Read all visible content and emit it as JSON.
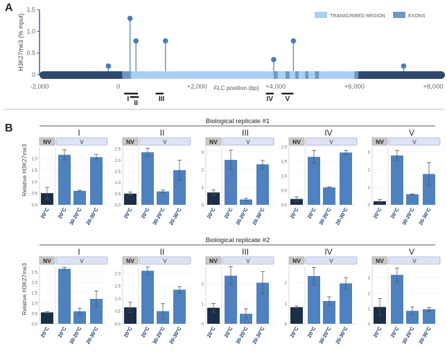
{
  "colors": {
    "dark_blue": "#2f4a6e",
    "light_blue": "#a9cfee",
    "exon_blue": "#6e98c4",
    "lollipop": "#4a7bb5",
    "bar_v": "#4e81bd",
    "bar_nv": "#1c2e45",
    "header_fill": "#dde3f3",
    "header_border": "#8a96c6",
    "nv_fill": "#c9c9c9",
    "axis": "#3b5f9b"
  },
  "panel_a": {
    "label": "A",
    "legend": [
      "TRANSCRIBED REGION",
      "EXONS"
    ],
    "regions": [
      "I",
      "II",
      "III",
      "IV",
      "V"
    ],
    "region_bars": [
      {
        "name": "I",
        "start": 150,
        "end": 500
      },
      {
        "name": "II",
        "start": 300,
        "end": 520
      },
      {
        "name": "III",
        "start": 950,
        "end": 1150
      },
      {
        "name": "IV",
        "start": 3750,
        "end": 3950
      },
      {
        "name": "V",
        "start": 4150,
        "end": 4450
      }
    ],
    "gene_line": {
      "start": -2000,
      "end": 8300
    },
    "transcribed": {
      "start": 300,
      "end": 6100
    },
    "exons": [
      {
        "start": 100,
        "end": 320
      },
      {
        "start": 3950,
        "end": 4050
      },
      {
        "start": 4250,
        "end": 4350
      },
      {
        "start": 4500,
        "end": 4580
      },
      {
        "start": 4750,
        "end": 4830
      },
      {
        "start": 5000,
        "end": 5100
      },
      {
        "start": 6000,
        "end": 6100
      }
    ]
  },
  "chart_data": [
    {
      "type": "scatter",
      "subtype": "lollipop",
      "title": "",
      "xlabel": "FLC position (bp)",
      "xlabel_italic_part": "FLC",
      "ylabel": "H3K27me3 (% input)",
      "xlim": [
        -2000,
        8000
      ],
      "ylim": [
        0,
        1.5
      ],
      "x_ticks": [
        "-2,000",
        "0",
        "+2,000",
        "+4,000",
        "+6,000",
        "+8,000"
      ],
      "x_tick_values": [
        -2000,
        0,
        2000,
        4000,
        6000,
        8000
      ],
      "y_ticks": [
        "0",
        "0.5",
        "1.0",
        "1.5"
      ],
      "y_tick_values": [
        0,
        0.5,
        1.0,
        1.5
      ],
      "x": [
        -250,
        300,
        450,
        1200,
        3950,
        4450,
        7250
      ],
      "y": [
        0.2,
        1.3,
        0.78,
        0.78,
        0.35,
        0.78,
        0.2
      ]
    }
  ],
  "panel_b": {
    "label": "B",
    "ylabel": "Relative H3K27me3",
    "nv_label": "NV",
    "v_label": "V",
    "categories": [
      "20°C",
      "20°C",
      "30-20°C",
      "20-30°C"
    ],
    "replicates": [
      {
        "title": "Biological replicate #1",
        "groups": [
          {
            "name": "I",
            "ylim": [
              0,
              2.5
            ],
            "y_ticks": [
              "0.0",
              "0.5",
              "1.0",
              "1.5",
              "2.0"
            ],
            "y_tick_values": [
              0,
              0.5,
              1.0,
              1.5,
              2.0
            ],
            "values": [
              0.5,
              2.15,
              0.6,
              2.05
            ],
            "errors": [
              0.25,
              0.22,
              0.03,
              0.12
            ]
          },
          {
            "name": "II",
            "ylim": [
              0,
              2.6
            ],
            "y_ticks": [
              "0.0",
              "0.5",
              "1.0",
              "1.5",
              "2.0",
              "2.5"
            ],
            "y_tick_values": [
              0,
              0.5,
              1.0,
              1.5,
              2.0,
              2.5
            ],
            "values": [
              0.5,
              2.35,
              0.6,
              1.55
            ],
            "errors": [
              0.07,
              0.18,
              0.06,
              0.45
            ]
          },
          {
            "name": "III",
            "ylim": [
              0,
              3.3
            ],
            "y_ticks": [
              "0",
              "1",
              "2",
              "3"
            ],
            "y_tick_values": [
              0,
              1,
              2,
              3
            ],
            "values": [
              0.7,
              2.55,
              0.3,
              2.3
            ],
            "errors": [
              0.15,
              0.55,
              0.07,
              0.22
            ]
          },
          {
            "name": "IV",
            "ylim": [
              0,
              2.0
            ],
            "y_ticks": [
              "0.0",
              "0.5",
              "1.0",
              "1.5",
              "2.0"
            ],
            "y_tick_values": [
              0,
              0.5,
              1.0,
              1.5,
              2.0
            ],
            "values": [
              0.2,
              1.65,
              0.6,
              1.8
            ],
            "errors": [
              0.07,
              0.22,
              0.02,
              0.07
            ]
          },
          {
            "name": "V",
            "ylim": [
              0,
              3.3
            ],
            "y_ticks": [
              "0",
              "1",
              "2",
              "3"
            ],
            "y_tick_values": [
              0,
              1,
              2,
              3
            ],
            "values": [
              0.2,
              2.8,
              0.6,
              1.75
            ],
            "errors": [
              0.1,
              0.28,
              0.02,
              0.65
            ]
          }
        ]
      },
      {
        "title": "Biological replicate #2",
        "groups": [
          {
            "name": "I",
            "ylim": [
              0,
              2.8
            ],
            "y_ticks": [
              "0.0",
              "0.5",
              "1.0",
              "1.5",
              "2.0",
              "2.5"
            ],
            "y_tick_values": [
              0,
              0.5,
              1.0,
              1.5,
              2.0,
              2.5
            ],
            "values": [
              0.55,
              2.65,
              0.6,
              1.2
            ],
            "errors": [
              0.04,
              0.07,
              0.15,
              0.38
            ]
          },
          {
            "name": "II",
            "ylim": [
              0,
              2.3
            ],
            "y_ticks": [
              "0.0",
              "0.5",
              "1.0",
              "1.5",
              "2.0"
            ],
            "y_tick_values": [
              0,
              0.5,
              1.0,
              1.5,
              2.0
            ],
            "values": [
              0.65,
              2.1,
              0.5,
              1.35
            ],
            "errors": [
              0.2,
              0.15,
              0.3,
              0.12
            ]
          },
          {
            "name": "III",
            "ylim": [
              0,
              2.9
            ],
            "y_ticks": [
              "0",
              "1",
              "2"
            ],
            "y_tick_values": [
              0,
              1,
              2
            ],
            "values": [
              0.8,
              2.4,
              0.5,
              2.05
            ],
            "errors": [
              0.22,
              0.45,
              0.25,
              0.55
            ]
          },
          {
            "name": "IV",
            "ylim": [
              0,
              2.8
            ],
            "y_ticks": [
              "0",
              "1",
              "2"
            ],
            "y_tick_values": [
              0,
              1,
              2
            ],
            "values": [
              0.8,
              2.3,
              1.1,
              1.95
            ],
            "errors": [
              0.06,
              0.42,
              0.2,
              0.28
            ]
          },
          {
            "name": "V",
            "ylim": [
              0,
              3.8
            ],
            "y_ticks": [
              "0",
              "1",
              "2",
              "3"
            ],
            "y_tick_values": [
              0,
              1,
              2,
              3
            ],
            "values": [
              1.1,
              3.2,
              0.85,
              0.95
            ],
            "errors": [
              0.55,
              0.45,
              0.25,
              0.12
            ]
          }
        ]
      }
    ]
  }
}
